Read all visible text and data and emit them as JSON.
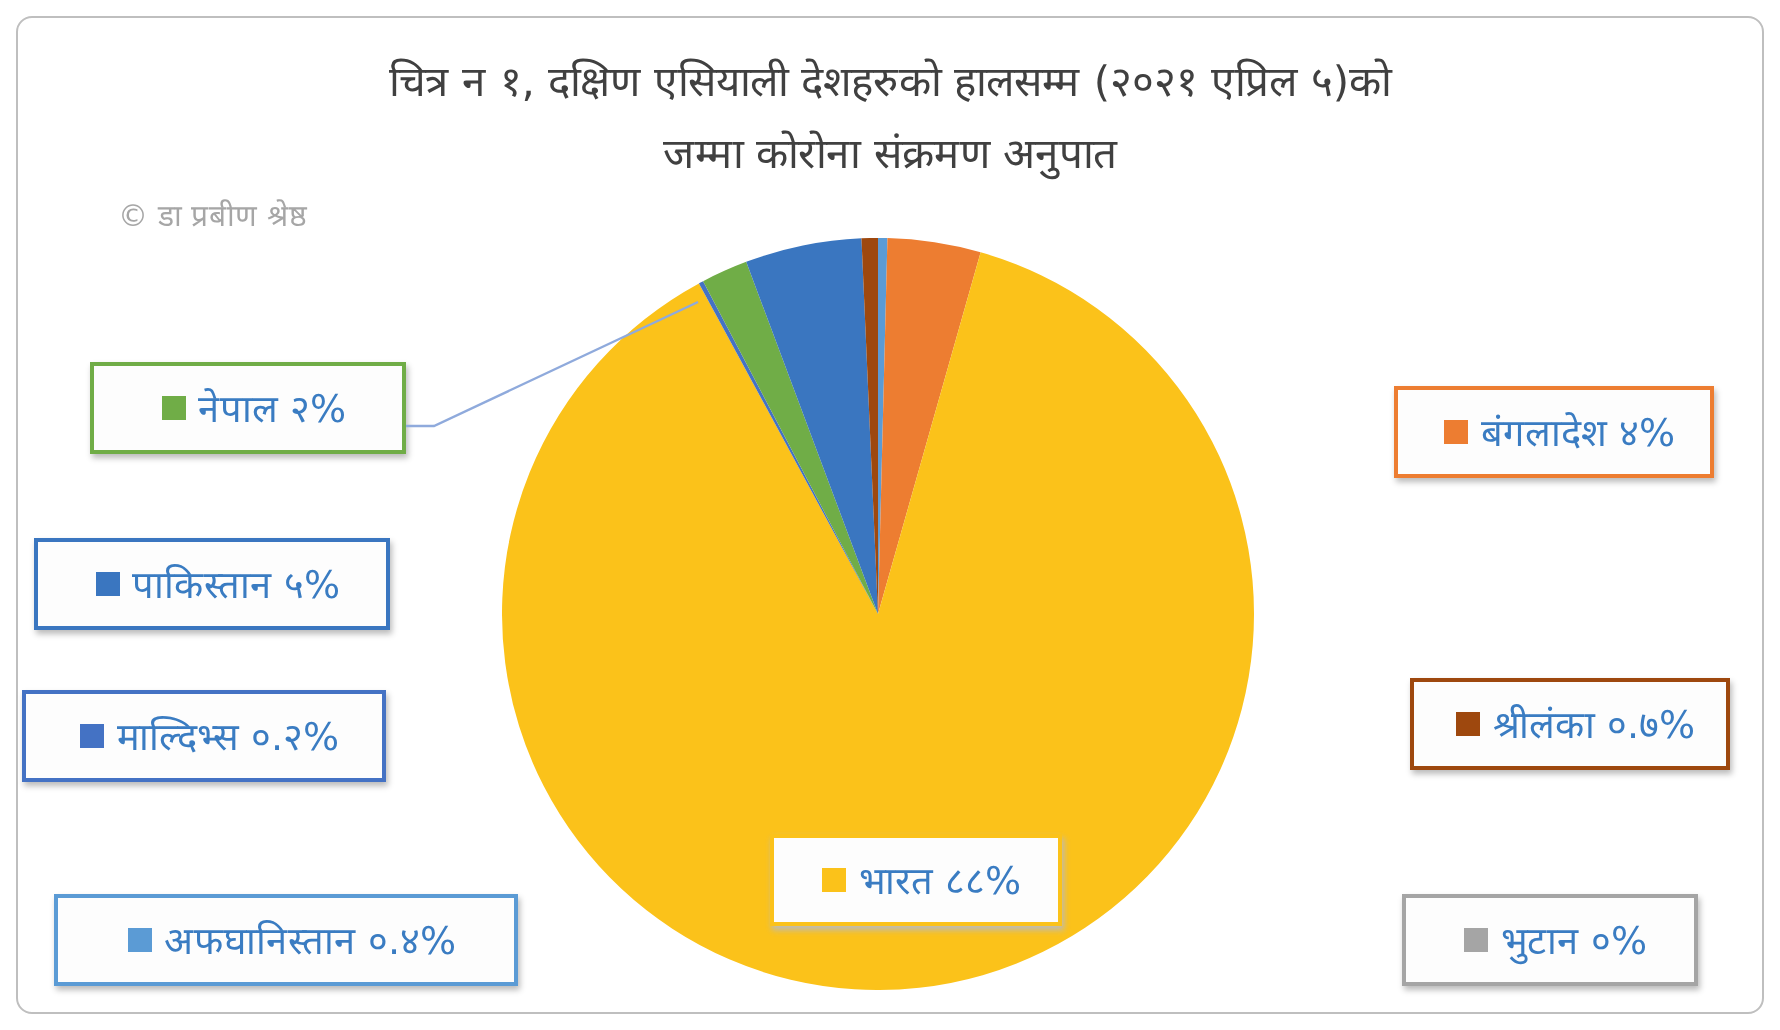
{
  "chart_data": {
    "type": "pie",
    "title": "चित्र न १, दक्षिण एसियाली देशहरुको हालसम्म (२०२१ एप्रिल ५)को\nजम्मा कोरोना संक्रमण अनुपात",
    "annotations": [
      "© डा प्रबीण श्रेष्ठ"
    ],
    "categories": [
      "अफघानिस्तान",
      "बंगलादेश",
      "भुटान",
      "भारत",
      "माल्दिभ्स",
      "नेपाल",
      "पाकिस्तान",
      "श्रीलंका"
    ],
    "values": [
      0.4,
      4,
      0,
      87.7,
      0.2,
      2,
      5,
      0.7
    ],
    "value_labels": [
      "०.४%",
      "४%",
      "०%",
      "८८%",
      "०.२%",
      "२%",
      "५%",
      "०.७%"
    ],
    "colors": [
      "#5b9bd5",
      "#ed7d31",
      "#a5a5a5",
      "#fbc21a",
      "#4472c4",
      "#70ad47",
      "#3a76c0",
      "#9e480e"
    ],
    "legend": "left"
  }
}
